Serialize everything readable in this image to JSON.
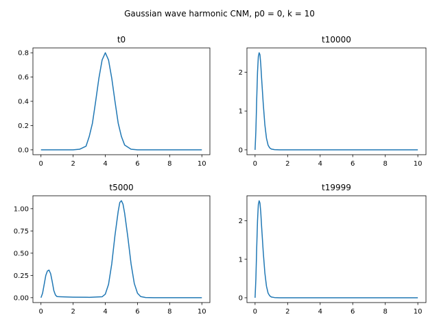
{
  "figure": {
    "suptitle": "Gaussian wave harmonic CNM, p0 = 0, k = 10"
  },
  "colors": {
    "line": "#1f77b4",
    "axes": "#000000",
    "background": "#ffffff"
  },
  "chart_data": [
    {
      "type": "line",
      "title": "t0",
      "xlabel": "",
      "ylabel": "",
      "xlim": [
        0,
        10
      ],
      "ylim": [
        -0.04,
        0.84
      ],
      "xticks": [
        0,
        2,
        4,
        6,
        8,
        10
      ],
      "xtick_labels": [
        "0",
        "2",
        "4",
        "6",
        "8",
        "10"
      ],
      "yticks": [
        0.0,
        0.2,
        0.4,
        0.6,
        0.8
      ],
      "ytick_labels": [
        "0.0",
        "0.2",
        "0.4",
        "0.6",
        "0.8"
      ],
      "grid": false,
      "series": [
        {
          "x": [
            0,
            1,
            2,
            2.4,
            2.8,
            3.0,
            3.2,
            3.4,
            3.6,
            3.8,
            4.0,
            4.2,
            4.4,
            4.6,
            4.8,
            5.0,
            5.2,
            5.6,
            6.0,
            7,
            8,
            9,
            10
          ],
          "y": [
            0,
            0,
            0.0003,
            0.005,
            0.03,
            0.11,
            0.22,
            0.4,
            0.59,
            0.74,
            0.8,
            0.74,
            0.59,
            0.4,
            0.22,
            0.11,
            0.04,
            0.005,
            0.0003,
            0,
            0,
            0,
            0
          ]
        }
      ]
    },
    {
      "type": "line",
      "title": "t10000",
      "xlabel": "",
      "ylabel": "",
      "xlim": [
        0,
        10
      ],
      "ylim": [
        -0.125,
        2.625
      ],
      "xticks": [
        0,
        2,
        4,
        6,
        8,
        10
      ],
      "xtick_labels": [
        "0",
        "2",
        "4",
        "6",
        "8",
        "10"
      ],
      "yticks": [
        0,
        1,
        2
      ],
      "ytick_labels": [
        "0",
        "1",
        "2"
      ],
      "grid": false,
      "series": [
        {
          "x": [
            0,
            0.05,
            0.1,
            0.15,
            0.2,
            0.25,
            0.3,
            0.35,
            0.4,
            0.5,
            0.6,
            0.7,
            0.8,
            0.9,
            1.0,
            1.2,
            1.5,
            3,
            5,
            7,
            10
          ],
          "y": [
            0,
            0.5,
            1.3,
            2.0,
            2.4,
            2.5,
            2.45,
            2.2,
            1.85,
            1.2,
            0.65,
            0.3,
            0.12,
            0.05,
            0.02,
            0.005,
            0,
            0,
            0,
            0,
            0
          ]
        }
      ]
    },
    {
      "type": "line",
      "title": "t5000",
      "xlabel": "",
      "ylabel": "",
      "xlim": [
        0,
        10
      ],
      "ylim": [
        -0.055,
        1.145
      ],
      "xticks": [
        0,
        2,
        4,
        6,
        8,
        10
      ],
      "xtick_labels": [
        "0",
        "2",
        "4",
        "6",
        "8",
        "10"
      ],
      "yticks": [
        0.0,
        0.25,
        0.5,
        0.75,
        1.0
      ],
      "ytick_labels": [
        "0.00",
        "0.25",
        "0.50",
        "0.75",
        "1.00"
      ],
      "grid": false,
      "series": [
        {
          "x": [
            0,
            0.1,
            0.2,
            0.3,
            0.4,
            0.5,
            0.6,
            0.7,
            0.8,
            0.9,
            1.0,
            1.2,
            1.5,
            2,
            3,
            3.8,
            4.0,
            4.2,
            4.4,
            4.6,
            4.8,
            4.9,
            5.0,
            5.1,
            5.2,
            5.4,
            5.6,
            5.8,
            6.0,
            6.2,
            6.5,
            7,
            8,
            9,
            10
          ],
          "y": [
            0,
            0.05,
            0.15,
            0.25,
            0.3,
            0.31,
            0.27,
            0.18,
            0.08,
            0.03,
            0.012,
            0.01,
            0.008,
            0.006,
            0.004,
            0.01,
            0.04,
            0.15,
            0.38,
            0.7,
            0.97,
            1.07,
            1.09,
            1.05,
            0.95,
            0.68,
            0.38,
            0.16,
            0.05,
            0.012,
            0.002,
            0,
            0,
            0,
            0
          ]
        }
      ]
    },
    {
      "type": "line",
      "title": "t19999",
      "xlabel": "",
      "ylabel": "",
      "xlim": [
        0,
        10
      ],
      "ylim": [
        -0.125,
        2.65
      ],
      "xticks": [
        0,
        2,
        4,
        6,
        8,
        10
      ],
      "xtick_labels": [
        "0",
        "2",
        "4",
        "6",
        "8",
        "10"
      ],
      "yticks": [
        0,
        1,
        2
      ],
      "ytick_labels": [
        "0",
        "1",
        "2"
      ],
      "grid": false,
      "series": [
        {
          "x": [
            0,
            0.05,
            0.1,
            0.15,
            0.2,
            0.25,
            0.3,
            0.35,
            0.4,
            0.5,
            0.6,
            0.7,
            0.8,
            0.9,
            1.0,
            1.2,
            1.5,
            3,
            5,
            7,
            10
          ],
          "y": [
            0,
            0.5,
            1.3,
            2.0,
            2.42,
            2.52,
            2.46,
            2.22,
            1.86,
            1.2,
            0.65,
            0.3,
            0.12,
            0.05,
            0.02,
            0.005,
            0,
            0,
            0,
            0,
            0
          ]
        }
      ]
    }
  ]
}
